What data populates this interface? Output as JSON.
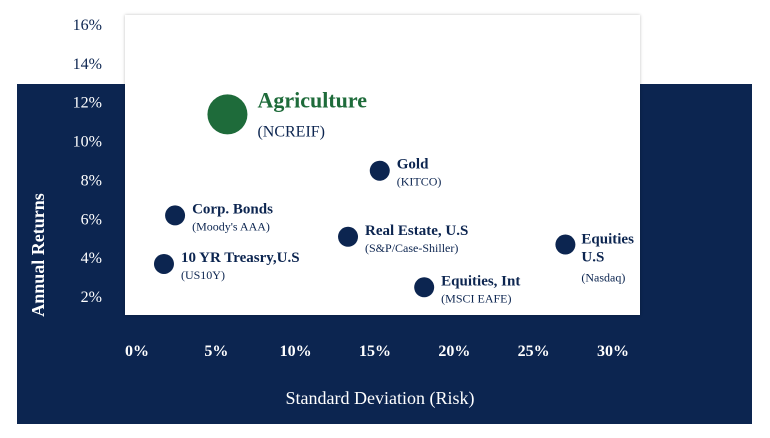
{
  "chart_data": {
    "type": "scatter",
    "xlabel": "Standard Deviation (Risk)",
    "ylabel": "Annual Returns",
    "x_ticks": [
      "0%",
      "5%",
      "10%",
      "15%",
      "20%",
      "25%",
      "30%"
    ],
    "y_ticks": [
      "2%",
      "4%",
      "6%",
      "8%",
      "10%",
      "12%",
      "14%",
      "16%"
    ],
    "xlim": [
      0,
      30
    ],
    "ylim": [
      2,
      16
    ],
    "grid": false,
    "points": [
      {
        "name": "Agriculture",
        "sub": "(NCREIF)",
        "x": 5.7,
        "y": 11.4,
        "highlight": true,
        "color": "#1e6b3a"
      },
      {
        "name": "Gold",
        "sub": "(KITCO)",
        "x": 15.3,
        "y": 8.5,
        "color": "#0c2550"
      },
      {
        "name": "Corp. Bonds",
        "sub": "(Moody's AAA)",
        "x": 2.4,
        "y": 6.2,
        "color": "#0c2550"
      },
      {
        "name": "Real Estate, U.S",
        "sub": "(S&P/Case-Shiller)",
        "x": 13.3,
        "y": 5.1,
        "color": "#0c2550"
      },
      {
        "name": "10 YR Treasry,U.S",
        "sub": "(US10Y)",
        "x": 1.7,
        "y": 3.7,
        "color": "#0c2550"
      },
      {
        "name": "Equities, Int",
        "sub": "(MSCI EAFE)",
        "x": 18.1,
        "y": 2.5,
        "color": "#0c2550"
      },
      {
        "name": "Equities U.S",
        "sub": "(Nasdaq)",
        "x": 27.0,
        "y": 4.7,
        "color": "#0c2550"
      }
    ]
  },
  "colors": {
    "navy_background": "#0c2550",
    "plot_background": "#ffffff",
    "highlight_green": "#1e6b3a"
  }
}
